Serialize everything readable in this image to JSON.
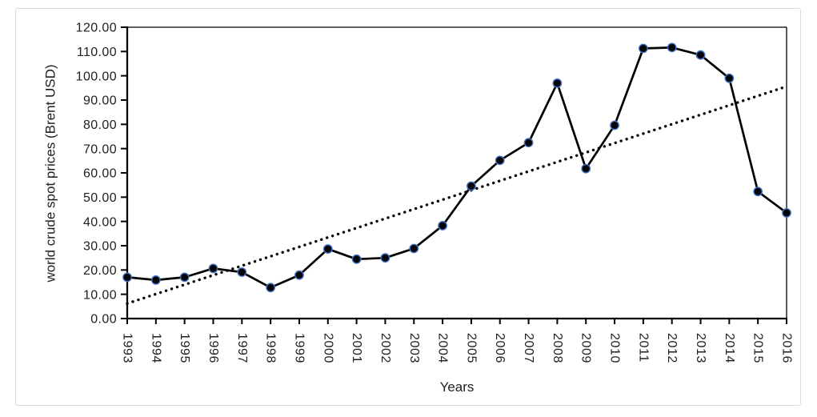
{
  "chart_data": {
    "type": "line",
    "title": "",
    "xlabel": "Years",
    "ylabel": "world crude spot prices (Brent USD)",
    "categories": [
      "1993",
      "1994",
      "1995",
      "1996",
      "1997",
      "1998",
      "1999",
      "2000",
      "2001",
      "2002",
      "2003",
      "2004",
      "2005",
      "2006",
      "2007",
      "2008",
      "2009",
      "2010",
      "2011",
      "2012",
      "2013",
      "2014",
      "2015",
      "2016"
    ],
    "series": [
      {
        "values": [
          17.01,
          15.86,
          17.02,
          20.64,
          19.11,
          12.76,
          17.9,
          28.66,
          24.46,
          24.99,
          28.85,
          38.26,
          54.57,
          65.16,
          72.44,
          96.94,
          61.74,
          79.61,
          111.26,
          111.63,
          108.56,
          98.97,
          52.32,
          43.55
        ]
      }
    ],
    "trendline": {
      "type": "linear",
      "style": "dotted",
      "value_at_first_category": 6.2,
      "value_at_last_category": 95.6
    },
    "ylim": [
      0,
      120
    ],
    "ytick_step": 10,
    "ytick_labels": [
      "0.00",
      "10.00",
      "20.00",
      "30.00",
      "40.00",
      "50.00",
      "60.00",
      "70.00",
      "80.00",
      "90.00",
      "100.00",
      "110.00",
      "120.00"
    ],
    "grid": false,
    "legend": false,
    "axis_position": "on_tick_marks",
    "colors": {
      "line": "#000000",
      "marker_fill": "#050608",
      "marker_edge": "#4472c4",
      "trendline": "#000000",
      "axis": "#000000",
      "text": "#1f1f1f",
      "frame_border": "#d9d9d9",
      "background": "#ffffff"
    }
  }
}
